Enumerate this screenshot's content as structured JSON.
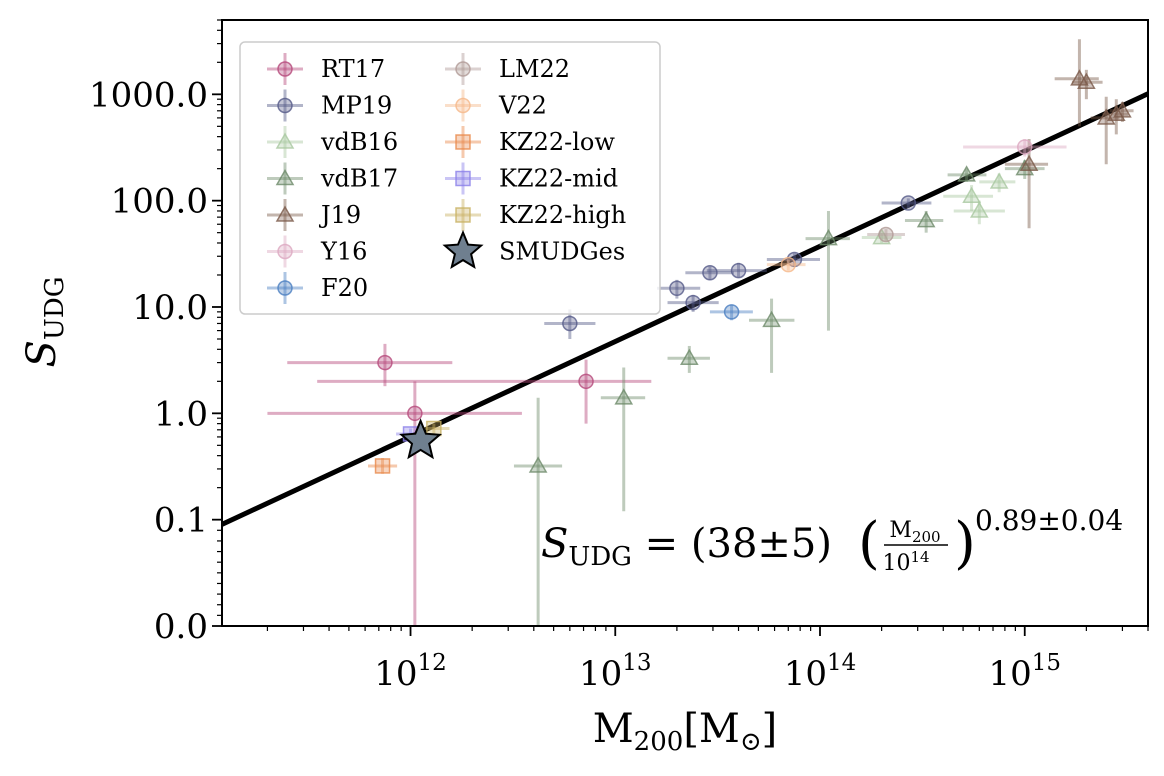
{
  "chart_data": {
    "type": "scatter",
    "xlabel": "M200[M⊙]",
    "ylabel": "SUDG",
    "xscale": "log",
    "yscale": "symlog",
    "xlim": [
      120000000000.0,
      4000000000000000.0
    ],
    "ylim": [
      0.0,
      5000
    ],
    "grid": false,
    "legend_position": "top-left",
    "x_ticks": [
      {
        "value": 1000000000000.0,
        "label": "10^12"
      },
      {
        "value": 10000000000000.0,
        "label": "10^13"
      },
      {
        "value": 100000000000000.0,
        "label": "10^14"
      },
      {
        "value": 1000000000000000.0,
        "label": "10^15"
      }
    ],
    "y_ticks": [
      {
        "value": 0.0,
        "label": "0.0"
      },
      {
        "value": 0.1,
        "label": "0.1"
      },
      {
        "value": 1.0,
        "label": "1.0"
      },
      {
        "value": 10.0,
        "label": "10.0"
      },
      {
        "value": 100.0,
        "label": "100.0"
      },
      {
        "value": 1000.0,
        "label": "1000.0"
      }
    ],
    "fit": {
      "normalization": 38,
      "normalization_err": 5,
      "slope": 0.89,
      "slope_err": 0.04,
      "pivot": 100000000000000.0,
      "label_lhs": "SUDG",
      "label_rhs_prefix": "= (38±5)",
      "label_fraction_num": "M200",
      "label_fraction_den": "10^14",
      "label_exponent": "0.89±0.04"
    },
    "series": [
      {
        "name": "RT17",
        "marker": "circle",
        "color": "#b5487a",
        "points": [
          {
            "x": 750000000000.0,
            "y": 3.0,
            "xlo": 250000000000.0,
            "xhi": 1600000000000.0,
            "ylo": 1.8,
            "yhi": 4.5
          },
          {
            "x": 1050000000000.0,
            "y": 1.0,
            "xlo": 200000000000.0,
            "xhi": 3500000000000.0,
            "ylo": 0.0,
            "yhi": 2.0
          },
          {
            "x": 7200000000000.0,
            "y": 2.0,
            "xlo": 350000000000.0,
            "xhi": 15000000000000.0,
            "ylo": 0.8,
            "yhi": 3.2
          }
        ]
      },
      {
        "name": "MP19",
        "marker": "circle",
        "color": "#555a88",
        "points": [
          {
            "x": 6000000000000.0,
            "y": 7.0,
            "xlo": 4500000000000.0,
            "xhi": 8000000000000.0,
            "ylo": 5.0,
            "yhi": 9.5
          },
          {
            "x": 20000000000000.0,
            "y": 15.0,
            "xlo": 16000000000000.0,
            "xhi": 26000000000000.0,
            "ylo": 12.0,
            "yhi": 18.0
          },
          {
            "x": 24000000000000.0,
            "y": 11.0,
            "xlo": 18000000000000.0,
            "xhi": 32000000000000.0,
            "ylo": 9.0,
            "yhi": 13.0
          },
          {
            "x": 29000000000000.0,
            "y": 21.0,
            "xlo": 22000000000000.0,
            "xhi": 38000000000000.0,
            "ylo": 18.0,
            "yhi": 24.0
          },
          {
            "x": 40000000000000.0,
            "y": 22.0,
            "xlo": 28000000000000.0,
            "xhi": 55000000000000.0,
            "ylo": 19.0,
            "yhi": 26.0
          },
          {
            "x": 75000000000000.0,
            "y": 28.0,
            "xlo": 55000000000000.0,
            "xhi": 100000000000000.0,
            "ylo": 24.0,
            "yhi": 32.0
          },
          {
            "x": 270000000000000.0,
            "y": 95.0,
            "xlo": 200000000000000.0,
            "xhi": 350000000000000.0,
            "ylo": 85.0,
            "yhi": 105.0
          }
        ]
      },
      {
        "name": "vdB16",
        "marker": "triangle",
        "color": "#a9c8a0",
        "points": [
          {
            "x": 200000000000000.0,
            "y": 45.0,
            "xlo": 160000000000000.0,
            "xhi": 250000000000000.0,
            "ylo": 40.0,
            "yhi": 50.0
          },
          {
            "x": 550000000000000.0,
            "y": 110.0,
            "xlo": 400000000000000.0,
            "xhi": 700000000000000.0,
            "ylo": 80.0,
            "yhi": 140.0
          },
          {
            "x": 600000000000000.0,
            "y": 80.0,
            "xlo": 450000000000000.0,
            "xhi": 800000000000000.0,
            "ylo": 60.0,
            "yhi": 100.0
          },
          {
            "x": 750000000000000.0,
            "y": 150.0,
            "xlo": 600000000000000.0,
            "xhi": 900000000000000.0,
            "ylo": 120.0,
            "yhi": 180.0
          }
        ]
      },
      {
        "name": "vdB17",
        "marker": "triangle",
        "color": "#6e8b6a",
        "points": [
          {
            "x": 4200000000000.0,
            "y": 0.32,
            "xlo": 3200000000000.0,
            "xhi": 5500000000000.0,
            "ylo": 0.0,
            "yhi": 1.4
          },
          {
            "x": 11000000000000.0,
            "y": 1.4,
            "xlo": 8500000000000.0,
            "xhi": 14000000000000.0,
            "ylo": 0.12,
            "yhi": 2.7
          },
          {
            "x": 23000000000000.0,
            "y": 3.3,
            "xlo": 18000000000000.0,
            "xhi": 29000000000000.0,
            "ylo": 2.4,
            "yhi": 4.3
          },
          {
            "x": 58000000000000.0,
            "y": 7.5,
            "xlo": 45000000000000.0,
            "xhi": 75000000000000.0,
            "ylo": 2.4,
            "yhi": 12.0
          },
          {
            "x": 110000000000000.0,
            "y": 44.0,
            "xlo": 85000000000000.0,
            "xhi": 140000000000000.0,
            "ylo": 6.0,
            "yhi": 80.0
          },
          {
            "x": 330000000000000.0,
            "y": 65.0,
            "xlo": 260000000000000.0,
            "xhi": 400000000000000.0,
            "ylo": 50.0,
            "yhi": 80.0
          },
          {
            "x": 520000000000000.0,
            "y": 175.0,
            "xlo": 420000000000000.0,
            "xhi": 650000000000000.0,
            "ylo": 150.0,
            "yhi": 200.0
          },
          {
            "x": 1000000000000000.0,
            "y": 200.0,
            "xlo": 800000000000000.0,
            "xhi": 1250000000000000.0,
            "ylo": 160.0,
            "yhi": 240.0
          }
        ]
      },
      {
        "name": "J19",
        "marker": "triangle",
        "color": "#7a5a4a",
        "points": [
          {
            "x": 1050000000000000.0,
            "y": 220.0,
            "xlo": 800000000000000.0,
            "xhi": 1300000000000000.0,
            "ylo": 55.0,
            "yhi": 380.0
          },
          {
            "x": 1850000000000000.0,
            "y": 1400.0,
            "xlo": 1400000000000000.0,
            "xhi": 2300000000000000.0,
            "ylo": 500.0,
            "yhi": 3300.0
          },
          {
            "x": 2000000000000000.0,
            "y": 1300.0,
            "xlo": 1700000000000000.0,
            "xhi": 2400000000000000.0,
            "ylo": 900.0,
            "yhi": 1700.0
          },
          {
            "x": 2500000000000000.0,
            "y": 600.0,
            "xlo": 2100000000000000.0,
            "xhi": 2900000000000000.0,
            "ylo": 220.0,
            "yhi": 950.0
          },
          {
            "x": 2800000000000000.0,
            "y": 650.0,
            "xlo": 2400000000000000.0,
            "xhi": 3200000000000000.0,
            "ylo": 420.0,
            "yhi": 900.0
          },
          {
            "x": 3000000000000000.0,
            "y": 700.0,
            "xlo": 2600000000000000.0,
            "xhi": 3400000000000000.0,
            "ylo": 550.0,
            "yhi": 850.0
          }
        ]
      },
      {
        "name": "Y16",
        "marker": "circle",
        "color": "#dca8c0",
        "points": [
          {
            "x": 1000000000000000.0,
            "y": 320.0,
            "xlo": 500000000000000.0,
            "xhi": 1600000000000000.0,
            "ylo": 260.0,
            "yhi": 380.0
          }
        ]
      },
      {
        "name": "F20",
        "marker": "circle",
        "color": "#4a7ec0",
        "points": [
          {
            "x": 37000000000000.0,
            "y": 9.0,
            "xlo": 29000000000000.0,
            "xhi": 47000000000000.0,
            "ylo": 7.5,
            "yhi": 10.5
          }
        ]
      },
      {
        "name": "LM22",
        "marker": "circle",
        "color": "#b09a96",
        "points": [
          {
            "x": 210000000000000.0,
            "y": 48.0,
            "xlo": 170000000000000.0,
            "xhi": 260000000000000.0,
            "ylo": 42.0,
            "yhi": 54.0
          }
        ]
      },
      {
        "name": "V22",
        "marker": "circle",
        "color": "#f5b88a",
        "points": [
          {
            "x": 70000000000000.0,
            "y": 25.0,
            "xlo": 55000000000000.0,
            "xhi": 85000000000000.0,
            "ylo": 22.0,
            "yhi": 28.0
          }
        ]
      },
      {
        "name": "KZ22-low",
        "marker": "square",
        "color": "#e8884a",
        "points": [
          {
            "x": 730000000000.0,
            "y": 0.32,
            "xlo": 620000000000.0,
            "xhi": 860000000000.0,
            "ylo": 0.27,
            "yhi": 0.38
          }
        ]
      },
      {
        "name": "KZ22-mid",
        "marker": "square",
        "color": "#8a7ee8",
        "points": [
          {
            "x": 1000000000000.0,
            "y": 0.64,
            "xlo": 850000000000.0,
            "xhi": 1200000000000.0,
            "ylo": 0.56,
            "yhi": 0.72
          }
        ]
      },
      {
        "name": "KZ22-high",
        "marker": "square",
        "color": "#c8b060",
        "points": [
          {
            "x": 1300000000000.0,
            "y": 0.72,
            "xlo": 1100000000000.0,
            "xhi": 1550000000000.0,
            "ylo": 0.64,
            "yhi": 0.8
          }
        ]
      },
      {
        "name": "SMUDGes",
        "marker": "star",
        "color": "#6f7f8f",
        "points": [
          {
            "x": 1120000000000.0,
            "y": 0.55
          }
        ]
      }
    ]
  }
}
